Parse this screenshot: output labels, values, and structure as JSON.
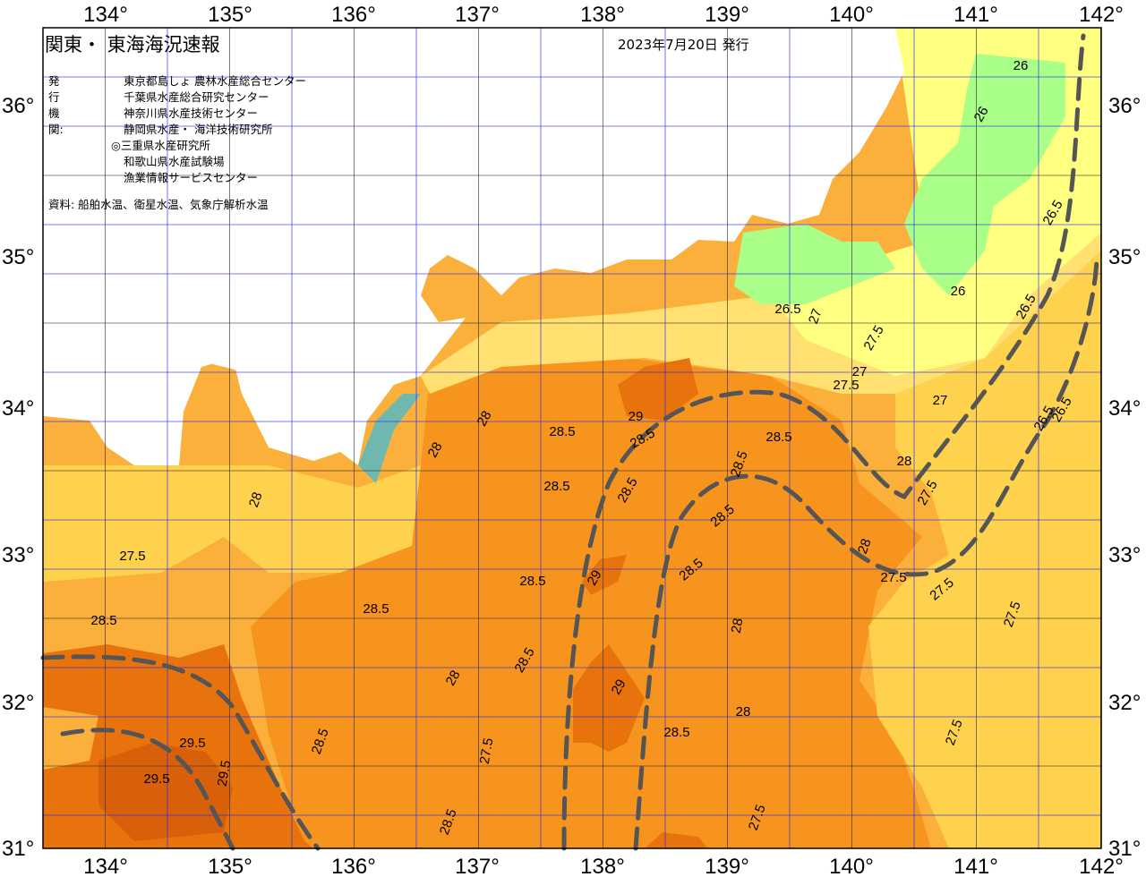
{
  "header": {
    "title": "関東・ 東海海況速報",
    "date": "2023年7月20日 発行",
    "issuers_label": "発行機関:",
    "issuers": [
      "東京都島しょ 農林水産総合センター",
      "千葉県水産総合研究センター",
      "神奈川県水産技術センター",
      "静岡県水産・ 海洋技術研究所",
      "◎三重県水産研究所",
      "和歌山県水産試験場",
      "漁業情報サービスセンター"
    ],
    "source": "資料: 船舶水温、衛星水温、気象庁解析水温"
  },
  "axes": {
    "lon_ticks": [
      "134°",
      "135°",
      "136°",
      "137°",
      "138°",
      "139°",
      "140°",
      "141°",
      "142°"
    ],
    "lat_ticks": [
      "36°",
      "35°",
      "34°",
      "33°",
      "32°",
      "31°"
    ]
  },
  "colors": {
    "land": "#ffffff",
    "t26": "#aaff88",
    "t26_5": "#ffff80",
    "t27": "#ffe070",
    "t27_5": "#ffd24d",
    "t28": "#fbb03b",
    "t28_5": "#f7941d",
    "t29": "#e8730c",
    "contour": "#0000ff",
    "front": "#555555"
  },
  "isotherm_labels": [
    "26",
    "26",
    "26.5",
    "26",
    "26.5",
    "27",
    "26.5",
    "27",
    "27.5",
    "27.5",
    "27",
    "27.5",
    "28",
    "28.5",
    "28.5",
    "28.5",
    "28.5",
    "28.5",
    "28",
    "28",
    "29",
    "29",
    "29",
    "29.5",
    "29.5",
    "29.5",
    "28.5",
    "28.5",
    "28",
    "28.5",
    "28.5",
    "28.5",
    "27.5",
    "27.5",
    "27.5",
    "28",
    "26.5",
    "26.5",
    "27.5",
    "27.5",
    "28.5",
    "28.5",
    "28",
    "28.5",
    "27.5",
    "27.5",
    "28.5",
    "28.5",
    "28",
    "28"
  ]
}
